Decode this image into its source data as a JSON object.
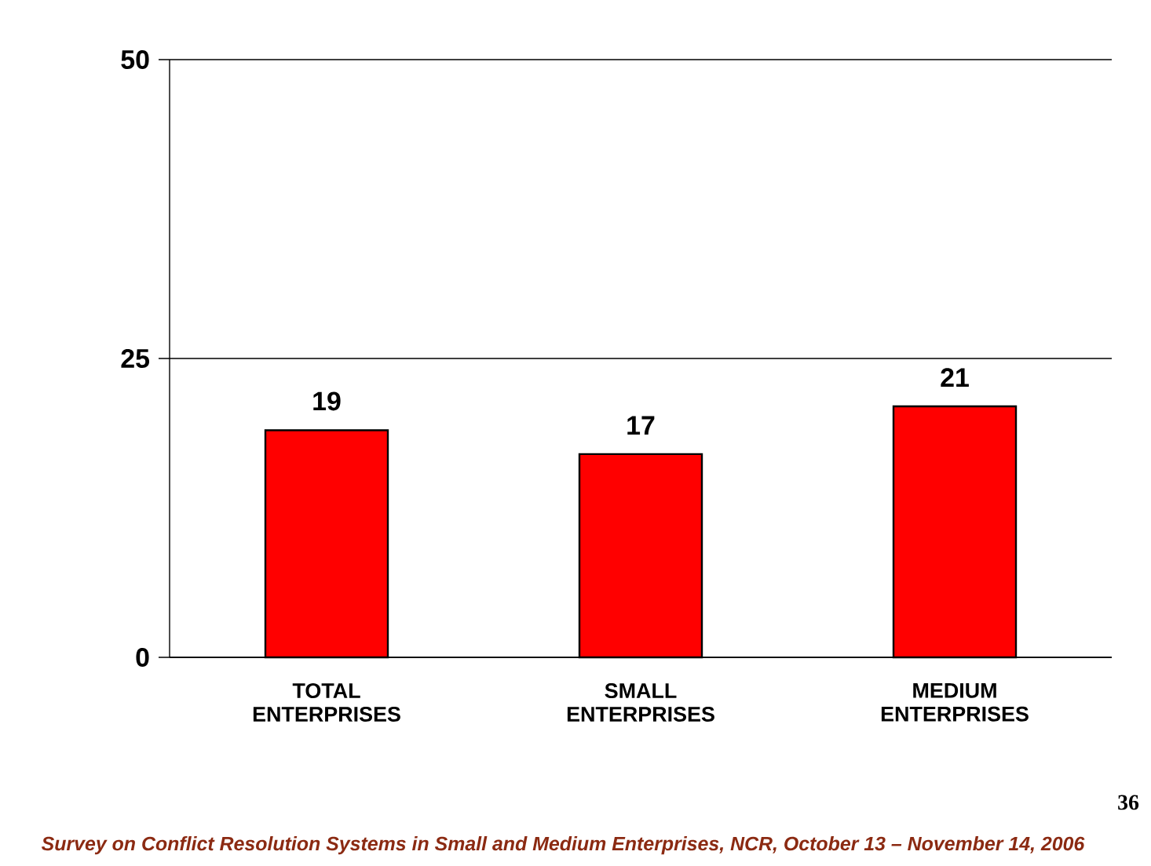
{
  "chart_data": {
    "type": "bar",
    "categories": [
      "TOTAL ENTERPRISES",
      "SMALL ENTERPRISES",
      "MEDIUM ENTERPRISES"
    ],
    "values": [
      19,
      17,
      21
    ],
    "color": "#ff0000",
    "ylim": [
      0,
      50
    ],
    "yticks": [
      0,
      25,
      50
    ],
    "grid": "y",
    "data_labels": true,
    "annotations": [
      "Survey on Conflict Resolution Systems in Small and Medium Enterprises, NCR, October 13 – November 14, 2006",
      "36"
    ]
  }
}
